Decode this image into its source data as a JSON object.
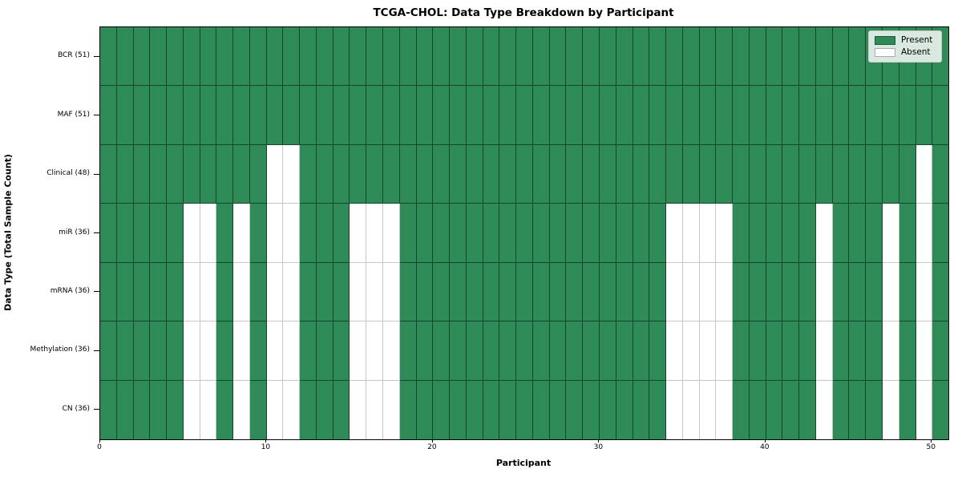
{
  "chart_data": {
    "type": "heatmap",
    "title": "TCGA-CHOL: Data Type Breakdown by Participant",
    "xlabel": "Participant",
    "ylabel": "Data Type (Total Sample Count)",
    "n_participants": 51,
    "x_ticks": [
      0,
      10,
      20,
      30,
      40,
      50
    ],
    "present_color": "#2e8b57",
    "absent_color": "#ffffff",
    "legend": [
      {
        "label": "Present",
        "state": "present"
      },
      {
        "label": "Absent",
        "state": "absent"
      }
    ],
    "rows": [
      {
        "name": "BCR",
        "label": "BCR (51)",
        "total": 51,
        "absent": []
      },
      {
        "name": "MAF",
        "label": "MAF (51)",
        "total": 51,
        "absent": []
      },
      {
        "name": "Clinical",
        "label": "Clinical (48)",
        "total": 48,
        "absent": [
          10,
          11,
          49
        ]
      },
      {
        "name": "miR",
        "label": "miR (36)",
        "total": 36,
        "absent": [
          5,
          6,
          8,
          10,
          11,
          15,
          16,
          17,
          34,
          35,
          36,
          37,
          43,
          47,
          49
        ]
      },
      {
        "name": "mRNA",
        "label": "mRNA (36)",
        "total": 36,
        "absent": [
          5,
          6,
          8,
          10,
          11,
          15,
          16,
          17,
          34,
          35,
          36,
          37,
          43,
          47,
          49
        ]
      },
      {
        "name": "Methylation",
        "label": "Methylation (36)",
        "total": 36,
        "absent": [
          5,
          6,
          8,
          10,
          11,
          15,
          16,
          17,
          34,
          35,
          36,
          37,
          43,
          47,
          49
        ]
      },
      {
        "name": "CN",
        "label": "CN (36)",
        "total": 36,
        "absent": [
          5,
          6,
          8,
          10,
          11,
          15,
          16,
          17,
          34,
          35,
          36,
          37,
          43,
          47,
          49
        ]
      }
    ]
  }
}
